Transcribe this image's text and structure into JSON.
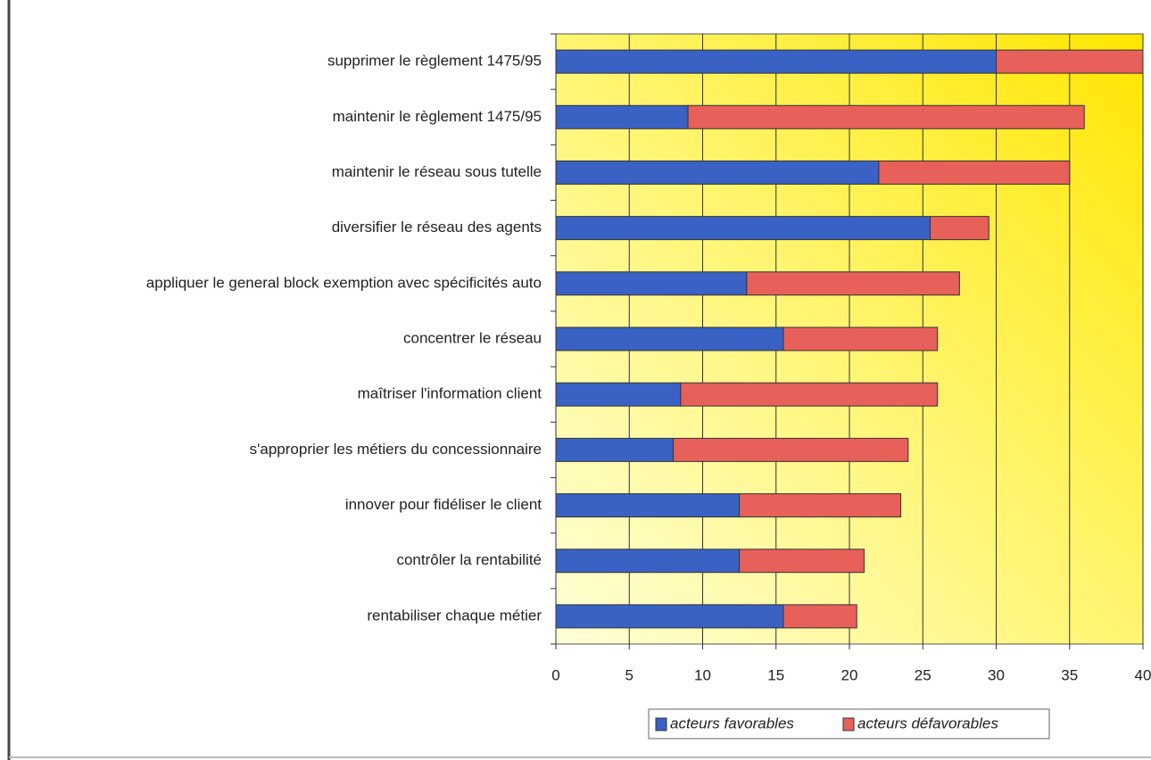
{
  "chart_data": {
    "type": "stacked_bar_horizontal",
    "categories": [
      "supprimer le règlement 1475/95",
      "maintenir le règlement 1475/95",
      "maintenir le réseau sous tutelle",
      "diversifier le réseau des agents",
      "appliquer le general block exemption avec spécificités auto",
      "concentrer le réseau",
      "maîtriser l'information client",
      "s'approprier les métiers du concessionnaire",
      "innover pour fidéliser le client",
      "contrôler la rentabilité",
      "rentabiliser chaque métier"
    ],
    "series": [
      {
        "name": "acteurs favorables",
        "color": "#3a62c4",
        "values": [
          30,
          9,
          22,
          25.5,
          13,
          15.5,
          8.5,
          8,
          12.5,
          12.5,
          15.5
        ]
      },
      {
        "name": "acteurs défavorables",
        "color": "#e8605a",
        "values": [
          10,
          27,
          13,
          4,
          14.5,
          10.5,
          17.5,
          16,
          11,
          8.5,
          5
        ]
      }
    ],
    "xlim": [
      0,
      40
    ],
    "xticks": [
      0,
      5,
      10,
      15,
      20,
      25,
      30,
      35,
      40
    ],
    "grid": true,
    "legend": "bottom"
  }
}
